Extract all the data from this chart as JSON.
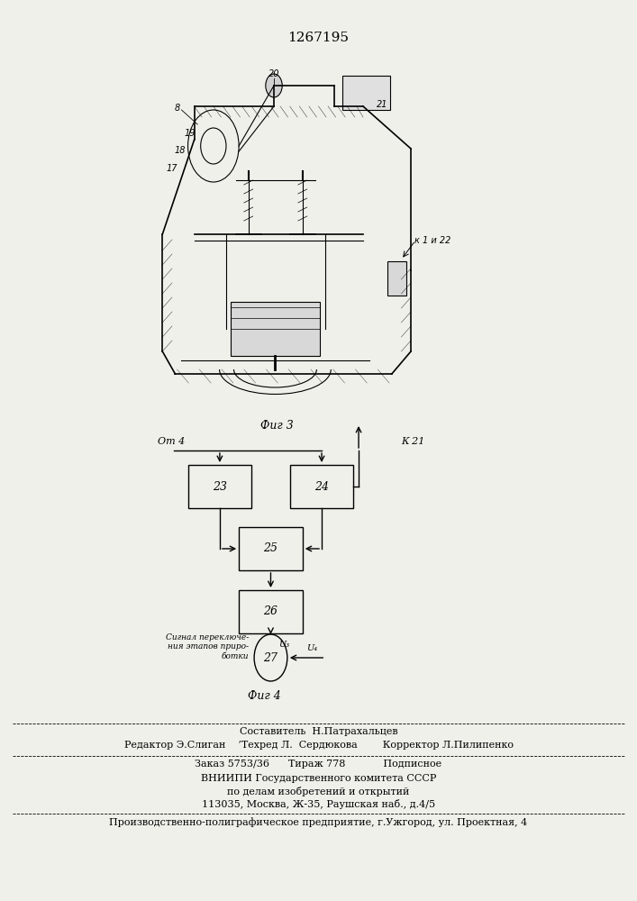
{
  "patent_number": "1267195",
  "bg_color": "#f0f0eb",
  "line_color": "#000000",
  "fig3_caption": "Фиг 3",
  "fig4_caption": "Фиг 4",
  "footer_line1": "Составитель  Н.Патрахальцев",
  "footer_line2": "Редактор Э.Слиган    ’Техред Л.  Сердюкова        Корректор Л.Пилипенко",
  "footer_line3": "Заказ 5753/36      Тираж 778            Подписное",
  "footer_line4": "ВНИИПИ Государственного комитета СССР",
  "footer_line5": "по делам изобретений и открытий",
  "footer_line6": "113035, Москва, Ж-35, Раушская наб., д.4/5",
  "footer_line7": "Производственно-полиграфическое предприятие, г.Ужгород, ул. Проектная, 4",
  "label_ot4": "От 4",
  "label_k21": "К 21",
  "label_u3": "U₃",
  "label_u4": "U₄",
  "signal_label": "Сигнал переключе-\nния этапов приро-\nботки"
}
